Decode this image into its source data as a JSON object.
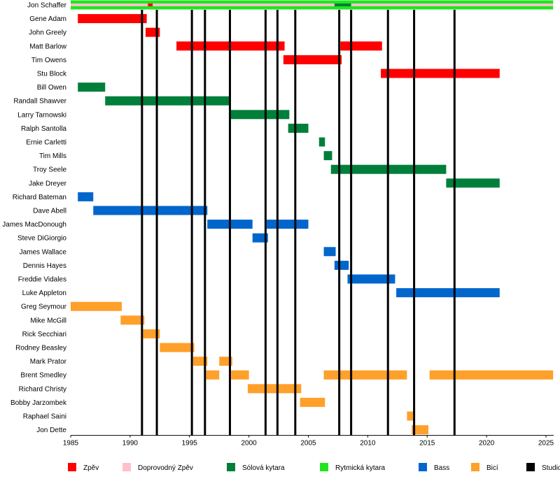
{
  "chart_data": {
    "type": "timeline",
    "title": "",
    "xlabel": "",
    "ylabel": "",
    "xlim": [
      1985,
      2025.6
    ],
    "x_ticks": [
      1985,
      1990,
      1995,
      2000,
      2005,
      2010,
      2015,
      2020,
      2025
    ],
    "roles": {
      "vocals": {
        "label": "Zpěv",
        "color": "#ff0000"
      },
      "backing": {
        "label": "Doprovodný Zpěv",
        "color": "#ffc0cb"
      },
      "lead": {
        "label": "Sólová kytara",
        "color": "#007f3a"
      },
      "rhythm": {
        "label": "Rytmická kytara",
        "color": "#1ee61e"
      },
      "bass": {
        "label": "Bass",
        "color": "#0066cc"
      },
      "drums": {
        "label": "Bicí",
        "color": "#ffa02a"
      },
      "studio": {
        "label": "Studio album",
        "color": "#000000"
      }
    },
    "legend_order": [
      "vocals",
      "backing",
      "lead",
      "rhythm",
      "bass",
      "drums",
      "studio"
    ],
    "studio_albums": [
      1991.0,
      1992.25,
      1995.2,
      1996.3,
      1998.4,
      2001.4,
      2002.4,
      2003.9,
      2007.6,
      2008.6,
      2011.7,
      2013.9,
      2017.3
    ],
    "members": [
      {
        "name": "Jon Schaffer",
        "segments": [
          {
            "role": "rhythm",
            "start": 1985.0,
            "end": 2025.6
          },
          {
            "role": "backing",
            "start": 1985.0,
            "end": 2025.6,
            "thin": true
          },
          {
            "role": "vocals",
            "start": 1991.5,
            "end": 1991.9,
            "thin": true
          },
          {
            "role": "lead",
            "start": 2007.2,
            "end": 2008.6,
            "thin": true
          }
        ]
      },
      {
        "name": "Gene Adam",
        "segments": [
          {
            "role": "vocals",
            "start": 1985.6,
            "end": 1991.4
          }
        ]
      },
      {
        "name": "John Greely",
        "segments": [
          {
            "role": "vocals",
            "start": 1991.3,
            "end": 1992.5
          }
        ]
      },
      {
        "name": "Matt Barlow",
        "segments": [
          {
            "role": "vocals",
            "start": 1993.9,
            "end": 2003.0
          },
          {
            "role": "vocals",
            "start": 2007.7,
            "end": 2011.2
          }
        ]
      },
      {
        "name": "Tim Owens",
        "segments": [
          {
            "role": "vocals",
            "start": 2002.9,
            "end": 2007.8
          }
        ]
      },
      {
        "name": "Stu Block",
        "segments": [
          {
            "role": "vocals",
            "start": 2011.1,
            "end": 2021.1
          }
        ]
      },
      {
        "name": "Bill Owen",
        "segments": [
          {
            "role": "lead",
            "start": 1985.6,
            "end": 1987.9
          }
        ]
      },
      {
        "name": "Randall Shawver",
        "segments": [
          {
            "role": "lead",
            "start": 1987.9,
            "end": 1998.4
          }
        ]
      },
      {
        "name": "Larry Tarnowski",
        "segments": [
          {
            "role": "lead",
            "start": 1998.4,
            "end": 2003.4
          }
        ]
      },
      {
        "name": "Ralph Santolla",
        "segments": [
          {
            "role": "lead",
            "start": 2003.3,
            "end": 2005.0
          }
        ]
      },
      {
        "name": "Ernie Carletti",
        "segments": [
          {
            "role": "lead",
            "start": 2005.9,
            "end": 2006.4
          }
        ]
      },
      {
        "name": "Tim Mills",
        "segments": [
          {
            "role": "lead",
            "start": 2006.3,
            "end": 2007.0
          }
        ]
      },
      {
        "name": "Troy Seele",
        "segments": [
          {
            "role": "lead",
            "start": 2006.9,
            "end": 2016.6
          }
        ]
      },
      {
        "name": "Jake Dreyer",
        "segments": [
          {
            "role": "lead",
            "start": 2016.6,
            "end": 2021.1
          }
        ]
      },
      {
        "name": "Richard Bateman",
        "segments": [
          {
            "role": "bass",
            "start": 1985.6,
            "end": 1986.9
          }
        ]
      },
      {
        "name": "Dave Abell",
        "segments": [
          {
            "role": "bass",
            "start": 1986.9,
            "end": 1996.5
          }
        ]
      },
      {
        "name": "James MacDonough",
        "segments": [
          {
            "role": "bass",
            "start": 1996.5,
            "end": 2000.3
          },
          {
            "role": "bass",
            "start": 2001.5,
            "end": 2005.0
          }
        ]
      },
      {
        "name": "Steve DiGiorgio",
        "segments": [
          {
            "role": "bass",
            "start": 2000.3,
            "end": 2001.6
          }
        ]
      },
      {
        "name": "James Wallace",
        "segments": [
          {
            "role": "bass",
            "start": 2006.3,
            "end": 2007.3
          }
        ]
      },
      {
        "name": "Dennis Hayes",
        "segments": [
          {
            "role": "bass",
            "start": 2007.2,
            "end": 2008.4
          }
        ]
      },
      {
        "name": "Freddie Vidales",
        "segments": [
          {
            "role": "bass",
            "start": 2008.3,
            "end": 2012.3
          }
        ]
      },
      {
        "name": "Luke Appleton",
        "segments": [
          {
            "role": "bass",
            "start": 2012.4,
            "end": 2021.1
          }
        ]
      },
      {
        "name": "Greg Seymour",
        "segments": [
          {
            "role": "drums",
            "start": 1985.0,
            "end": 1989.3
          }
        ]
      },
      {
        "name": "Mike McGill",
        "segments": [
          {
            "role": "drums",
            "start": 1989.2,
            "end": 1991.2
          }
        ]
      },
      {
        "name": "Rick Secchiari",
        "segments": [
          {
            "role": "drums",
            "start": 1991.1,
            "end": 1992.5
          }
        ]
      },
      {
        "name": "Rodney Beasley",
        "segments": [
          {
            "role": "drums",
            "start": 1992.5,
            "end": 1995.4
          }
        ]
      },
      {
        "name": "Mark Prator",
        "segments": [
          {
            "role": "drums",
            "start": 1995.3,
            "end": 1996.5
          },
          {
            "role": "drums",
            "start": 1997.5,
            "end": 1998.6
          }
        ]
      },
      {
        "name": "Brent Smedley",
        "segments": [
          {
            "role": "drums",
            "start": 1996.4,
            "end": 1997.5
          },
          {
            "role": "drums",
            "start": 1998.5,
            "end": 2000.0
          },
          {
            "role": "drums",
            "start": 2006.3,
            "end": 2013.3
          },
          {
            "role": "drums",
            "start": 2015.2,
            "end": 2025.6
          }
        ]
      },
      {
        "name": "Richard Christy",
        "segments": [
          {
            "role": "drums",
            "start": 1999.9,
            "end": 2004.4
          }
        ]
      },
      {
        "name": "Bobby Jarzombek",
        "segments": [
          {
            "role": "drums",
            "start": 2004.3,
            "end": 2006.4
          }
        ]
      },
      {
        "name": "Raphael Saini",
        "segments": [
          {
            "role": "drums",
            "start": 2013.3,
            "end": 2013.8
          }
        ]
      },
      {
        "name": "Jon Dette",
        "segments": [
          {
            "role": "drums",
            "start": 2013.7,
            "end": 2015.1
          }
        ]
      }
    ]
  }
}
